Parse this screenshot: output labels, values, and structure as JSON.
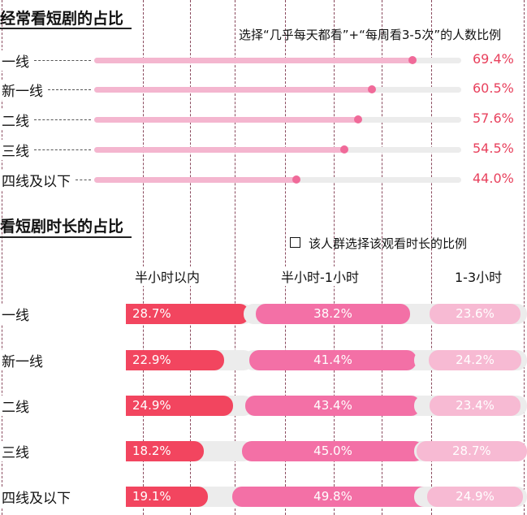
{
  "colors": {
    "accent_red": "#e8415d",
    "freq_bar": "#f4b6cf",
    "freq_dot": "#f06a99",
    "track": "#ececec",
    "dur_col1": "#f2455f",
    "dur_col2": "#f370a6",
    "dur_col3": "#f7bad3",
    "grid_line": "#8a4a5e"
  },
  "section1": {
    "title": "经常看短剧的占比",
    "subtitle": "选择“几乎每天都看”+“每周看3-5次”的人数比例"
  },
  "section2": {
    "title": "看短剧时长的占比",
    "legend": "该人群选择该观看时长的比例",
    "column_headers": [
      "半小时以内",
      "半小时-1小时",
      "1-3小时"
    ]
  },
  "chart_data": [
    {
      "type": "bar",
      "title": "经常看短剧的占比",
      "subtitle": "选择“几乎每天都看”+“每周看3-5次”的人数比例",
      "orientation": "horizontal",
      "categories": [
        "一线",
        "新一线",
        "二线",
        "三线",
        "四线及以下"
      ],
      "values": [
        69.4,
        60.5,
        57.6,
        54.5,
        44.0
      ],
      "value_labels": [
        "69.4%",
        "60.5%",
        "57.6%",
        "54.5%",
        "44.0%"
      ],
      "xlim": [
        0,
        100
      ],
      "unit": "%"
    },
    {
      "type": "bar",
      "title": "看短剧时长的占比",
      "legend": "该人群选择该观看时长的比例",
      "orientation": "horizontal",
      "categories": [
        "一线",
        "新一线",
        "二线",
        "三线",
        "四线及以下"
      ],
      "series": [
        {
          "name": "半小时以内",
          "values": [
            28.7,
            22.9,
            24.9,
            18.2,
            19.1
          ],
          "labels": [
            "28.7%",
            "22.9%",
            "24.9%",
            "18.2%",
            "19.1%"
          ]
        },
        {
          "name": "半小时-1小时",
          "values": [
            38.2,
            41.4,
            43.4,
            45.0,
            49.8
          ],
          "labels": [
            "38.2%",
            "41.4%",
            "43.4%",
            "45.0%",
            "49.8%"
          ]
        },
        {
          "name": "1-3小时",
          "values": [
            23.6,
            24.2,
            23.4,
            28.7,
            24.9
          ],
          "labels": [
            "23.6%",
            "24.2%",
            "23.4%",
            "28.7%",
            "24.9%"
          ]
        }
      ],
      "xlim": [
        0,
        100
      ],
      "unit": "%"
    }
  ]
}
